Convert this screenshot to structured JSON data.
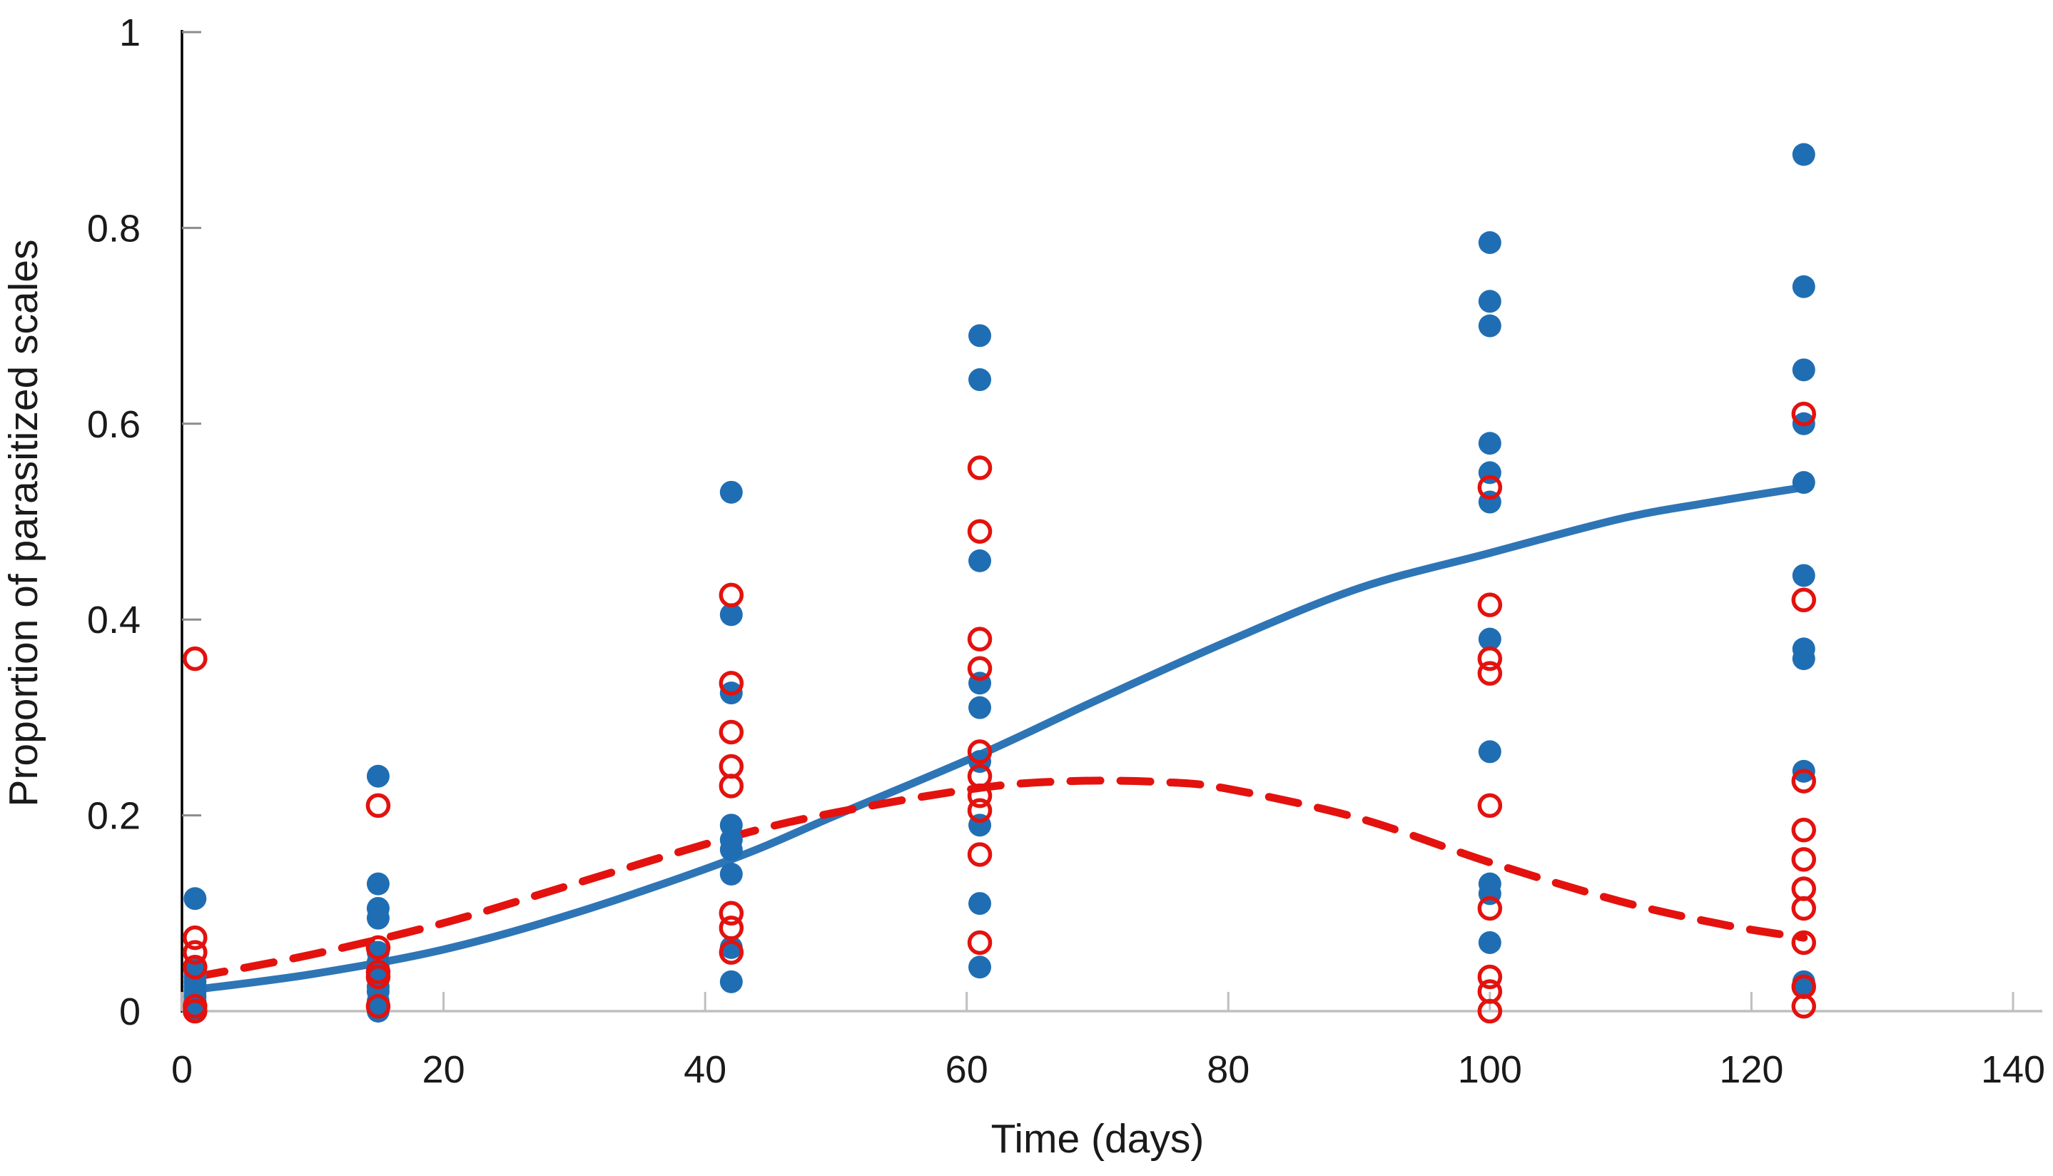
{
  "page": {
    "background_color": "#ffffff"
  },
  "chart_data": {
    "type": "scatter",
    "title": "",
    "xlabel": "Time (days)",
    "ylabel": "Proportion of parasitized scales",
    "xlim": [
      0,
      140
    ],
    "ylim": [
      0,
      1
    ],
    "grid": false,
    "legend_position": "none",
    "xticks": [
      {
        "value": 0,
        "label": "0"
      },
      {
        "value": 20,
        "label": "20"
      },
      {
        "value": 40,
        "label": "40"
      },
      {
        "value": 60,
        "label": "60"
      },
      {
        "value": 80,
        "label": "80"
      },
      {
        "value": 100,
        "label": "100"
      },
      {
        "value": 120,
        "label": "120"
      },
      {
        "value": 140,
        "label": "140"
      }
    ],
    "yticks": [
      {
        "value": 0,
        "label": "0"
      },
      {
        "value": 0.2,
        "label": "0.2"
      },
      {
        "value": 0.4,
        "label": "0.4"
      },
      {
        "value": 0.6,
        "label": "0.6"
      },
      {
        "value": 0.8,
        "label": "0.8"
      },
      {
        "value": 1,
        "label": "1"
      }
    ],
    "colors": {
      "blue_marker": "#1f6eb4",
      "blue_line": "#2e75b6",
      "red_marker": "#e3120e",
      "red_line": "#e3120e",
      "y_axis_line": "#000000",
      "x_axis_line": "#bfbfbf",
      "y_tick_mark": "#8c8c8c",
      "x_tick_mark": "#bfbfbf",
      "text": "#1a1a1a"
    },
    "series": [
      {
        "name": "blue-filled-observations",
        "marker": "filled-circle",
        "color": "#1f6eb4",
        "points": [
          [
            1,
            0.115
          ],
          [
            1,
            0.045
          ],
          [
            1,
            0.04
          ],
          [
            1,
            0.035
          ],
          [
            1,
            0.03
          ],
          [
            1,
            0.025
          ],
          [
            1,
            0.02
          ],
          [
            1,
            0.015
          ],
          [
            1,
            0.01
          ],
          [
            1,
            0.005
          ],
          [
            1,
            0.0
          ],
          [
            15,
            0.24
          ],
          [
            15,
            0.13
          ],
          [
            15,
            0.105
          ],
          [
            15,
            0.095
          ],
          [
            15,
            0.06
          ],
          [
            15,
            0.05
          ],
          [
            15,
            0.045
          ],
          [
            15,
            0.035
          ],
          [
            15,
            0.025
          ],
          [
            15,
            0.02
          ],
          [
            15,
            0.01
          ],
          [
            15,
            0.005
          ],
          [
            15,
            0.0
          ],
          [
            42,
            0.53
          ],
          [
            42,
            0.405
          ],
          [
            42,
            0.325
          ],
          [
            42,
            0.19
          ],
          [
            42,
            0.175
          ],
          [
            42,
            0.165
          ],
          [
            42,
            0.14
          ],
          [
            42,
            0.065
          ],
          [
            42,
            0.03
          ],
          [
            61,
            0.69
          ],
          [
            61,
            0.645
          ],
          [
            61,
            0.46
          ],
          [
            61,
            0.335
          ],
          [
            61,
            0.31
          ],
          [
            61,
            0.255
          ],
          [
            61,
            0.19
          ],
          [
            61,
            0.11
          ],
          [
            61,
            0.045
          ],
          [
            100,
            0.785
          ],
          [
            100,
            0.725
          ],
          [
            100,
            0.7
          ],
          [
            100,
            0.58
          ],
          [
            100,
            0.55
          ],
          [
            100,
            0.52
          ],
          [
            100,
            0.38
          ],
          [
            100,
            0.265
          ],
          [
            100,
            0.13
          ],
          [
            100,
            0.12
          ],
          [
            100,
            0.07
          ],
          [
            124,
            0.875
          ],
          [
            124,
            0.74
          ],
          [
            124,
            0.655
          ],
          [
            124,
            0.6
          ],
          [
            124,
            0.54
          ],
          [
            124,
            0.445
          ],
          [
            124,
            0.37
          ],
          [
            124,
            0.36
          ],
          [
            124,
            0.245
          ],
          [
            124,
            0.03
          ],
          [
            124,
            0.025
          ]
        ]
      },
      {
        "name": "red-open-observations",
        "marker": "open-circle",
        "color": "#e3120e",
        "points": [
          [
            1,
            0.36
          ],
          [
            1,
            0.075
          ],
          [
            1,
            0.06
          ],
          [
            1,
            0.045
          ],
          [
            1,
            0.005
          ],
          [
            1,
            0.0
          ],
          [
            15,
            0.21
          ],
          [
            15,
            0.065
          ],
          [
            15,
            0.04
          ],
          [
            15,
            0.035
          ],
          [
            15,
            0.005
          ],
          [
            42,
            0.425
          ],
          [
            42,
            0.335
          ],
          [
            42,
            0.285
          ],
          [
            42,
            0.25
          ],
          [
            42,
            0.23
          ],
          [
            42,
            0.1
          ],
          [
            42,
            0.085
          ],
          [
            42,
            0.06
          ],
          [
            61,
            0.555
          ],
          [
            61,
            0.49
          ],
          [
            61,
            0.38
          ],
          [
            61,
            0.35
          ],
          [
            61,
            0.265
          ],
          [
            61,
            0.24
          ],
          [
            61,
            0.22
          ],
          [
            61,
            0.205
          ],
          [
            61,
            0.16
          ],
          [
            61,
            0.07
          ],
          [
            100,
            0.535
          ],
          [
            100,
            0.415
          ],
          [
            100,
            0.36
          ],
          [
            100,
            0.345
          ],
          [
            100,
            0.21
          ],
          [
            100,
            0.105
          ],
          [
            100,
            0.035
          ],
          [
            100,
            0.02
          ],
          [
            100,
            0.0
          ],
          [
            124,
            0.61
          ],
          [
            124,
            0.42
          ],
          [
            124,
            0.235
          ],
          [
            124,
            0.185
          ],
          [
            124,
            0.155
          ],
          [
            124,
            0.125
          ],
          [
            124,
            0.105
          ],
          [
            124,
            0.07
          ],
          [
            124,
            0.025
          ],
          [
            124,
            0.005
          ]
        ]
      }
    ],
    "trend_lines": [
      {
        "name": "blue-solid-trend",
        "style": "solid",
        "color": "#2e75b6",
        "points": [
          [
            1,
            0.022
          ],
          [
            10,
            0.038
          ],
          [
            20,
            0.063
          ],
          [
            30,
            0.1
          ],
          [
            42,
            0.155
          ],
          [
            50,
            0.2
          ],
          [
            61,
            0.262
          ],
          [
            70,
            0.318
          ],
          [
            80,
            0.378
          ],
          [
            90,
            0.432
          ],
          [
            100,
            0.468
          ],
          [
            110,
            0.503
          ],
          [
            117,
            0.52
          ],
          [
            124,
            0.535
          ]
        ]
      },
      {
        "name": "red-dashed-trend",
        "style": "dashed",
        "color": "#e3120e",
        "points": [
          [
            1,
            0.035
          ],
          [
            10,
            0.058
          ],
          [
            20,
            0.09
          ],
          [
            30,
            0.13
          ],
          [
            42,
            0.178
          ],
          [
            50,
            0.203
          ],
          [
            61,
            0.228
          ],
          [
            68,
            0.235
          ],
          [
            75,
            0.234
          ],
          [
            80,
            0.227
          ],
          [
            90,
            0.197
          ],
          [
            100,
            0.152
          ],
          [
            110,
            0.112
          ],
          [
            118,
            0.088
          ],
          [
            124,
            0.075
          ]
        ]
      }
    ]
  }
}
